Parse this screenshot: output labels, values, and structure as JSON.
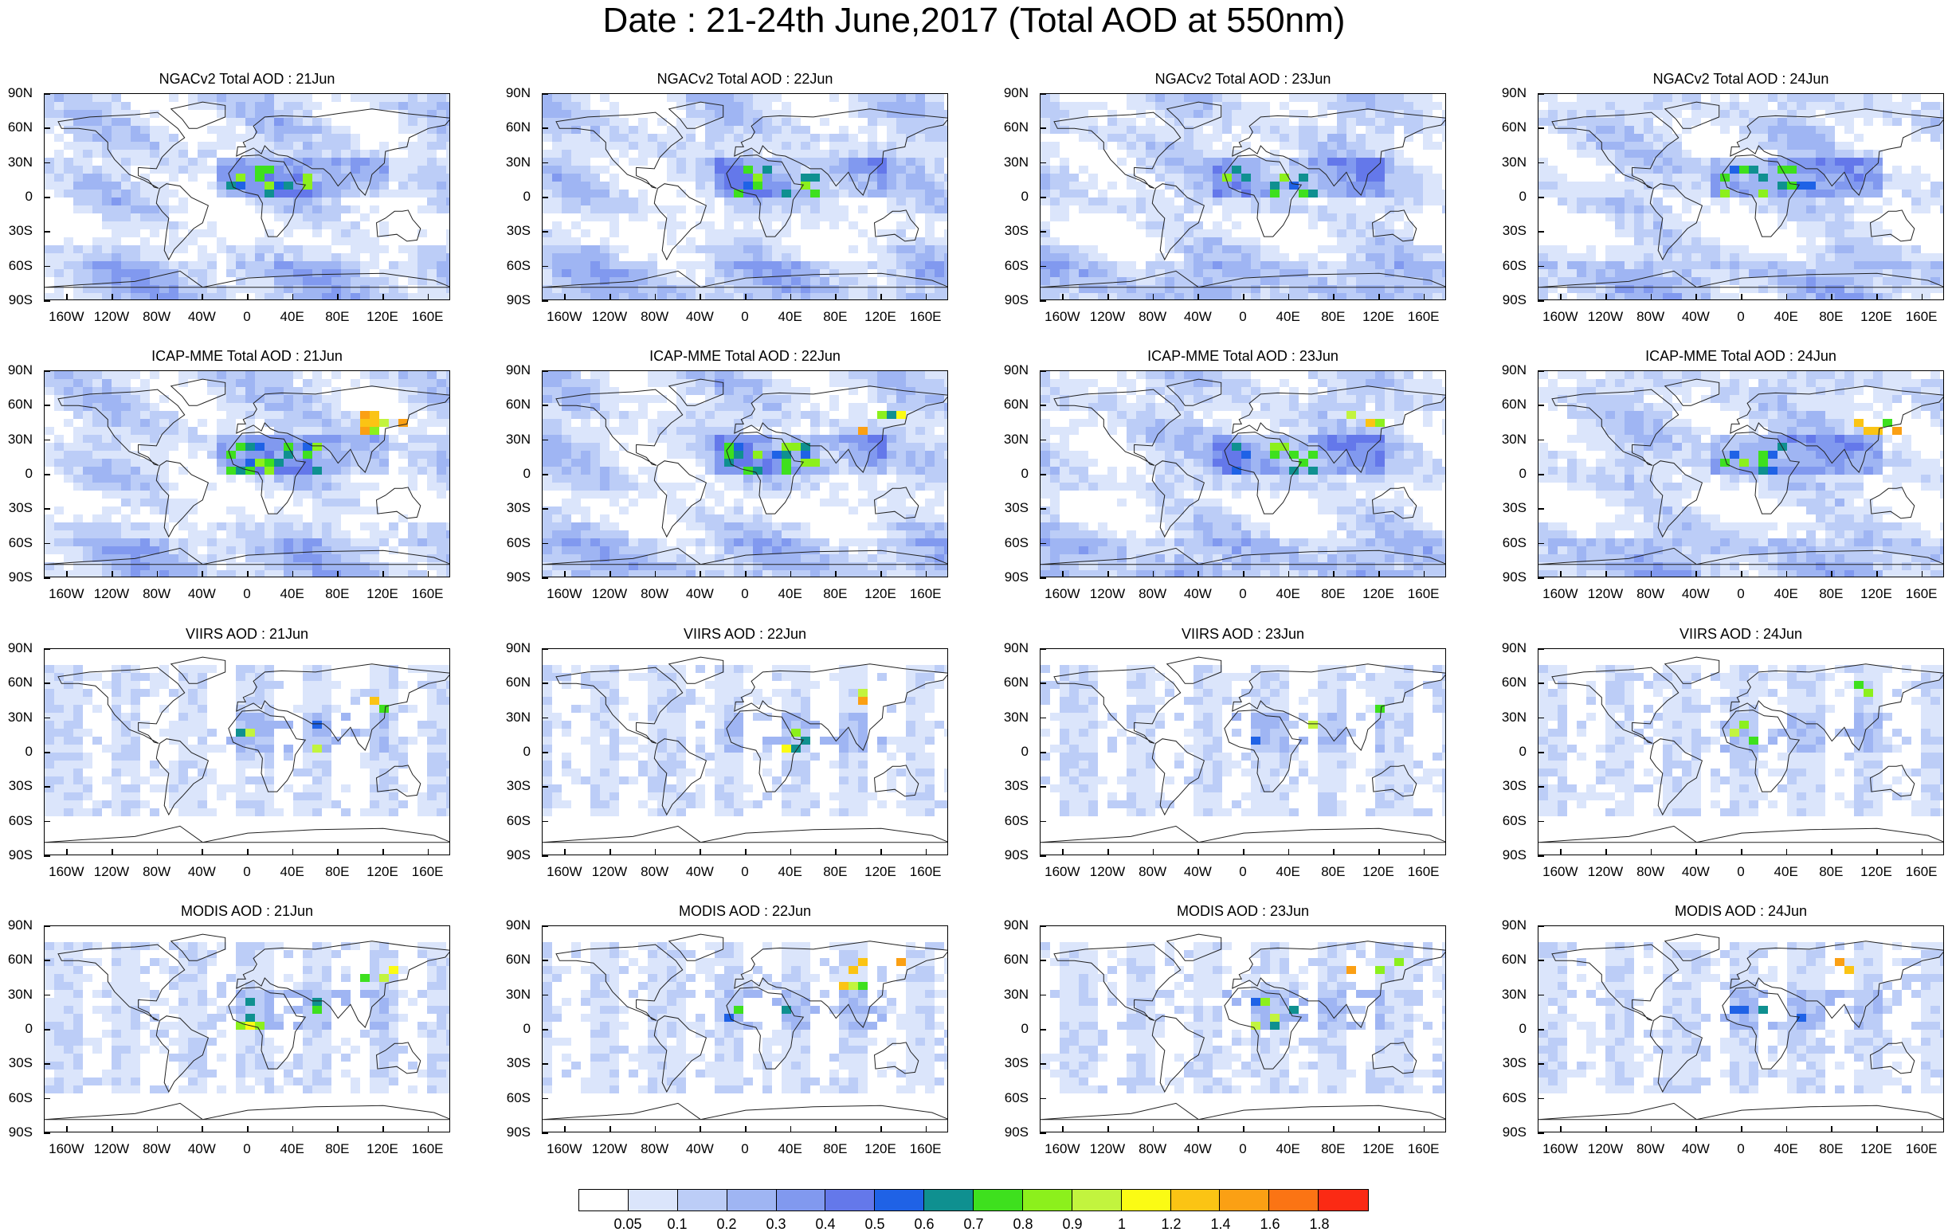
{
  "title": "Date : 21-24th June,2017 (Total AOD at 550nm)",
  "y_axis_labels": [
    "90N",
    "60N",
    "30N",
    "0",
    "30S",
    "60S",
    "90S"
  ],
  "x_axis_labels": [
    "160W",
    "120W",
    "80W",
    "40W",
    "0",
    "40E",
    "80E",
    "120E",
    "160E"
  ],
  "rows": [
    {
      "source": "NGACv2",
      "titles": [
        "NGACv2 Total AOD : 21Jun",
        "NGACv2 Total AOD : 22Jun",
        "NGACv2 Total AOD : 23Jun",
        "NGACv2 Total AOD : 24Jun"
      ]
    },
    {
      "source": "ICAP-MME",
      "titles": [
        "ICAP-MME Total AOD : 21Jun",
        "ICAP-MME Total AOD : 22Jun",
        "ICAP-MME Total AOD : 23Jun",
        "ICAP-MME Total AOD : 24Jun"
      ]
    },
    {
      "source": "VIIRS",
      "titles": [
        "VIIRS AOD : 21Jun",
        "VIIRS AOD : 22Jun",
        "VIIRS AOD : 23Jun",
        "VIIRS AOD : 24Jun"
      ]
    },
    {
      "source": "MODIS",
      "titles": [
        "MODIS AOD : 21Jun",
        "MODIS AOD : 22Jun",
        "MODIS AOD : 23Jun",
        "MODIS AOD : 24Jun"
      ]
    }
  ],
  "colorbar": {
    "labels": [
      "0.05",
      "0.1",
      "0.2",
      "0.3",
      "0.4",
      "0.5",
      "0.6",
      "0.7",
      "0.8",
      "0.9",
      "1",
      "1.2",
      "1.4",
      "1.6",
      "1.8"
    ],
    "colors": [
      "#ffffff",
      "#dbe5fb",
      "#bccdf7",
      "#9fb5f3",
      "#8199ef",
      "#6478ea",
      "#1f62e6",
      "#0f9090",
      "#3ee01e",
      "#8cf01c",
      "#c2f43e",
      "#fbfb14",
      "#fbc414",
      "#fba014",
      "#fb7414",
      "#fb2a14"
    ]
  }
}
